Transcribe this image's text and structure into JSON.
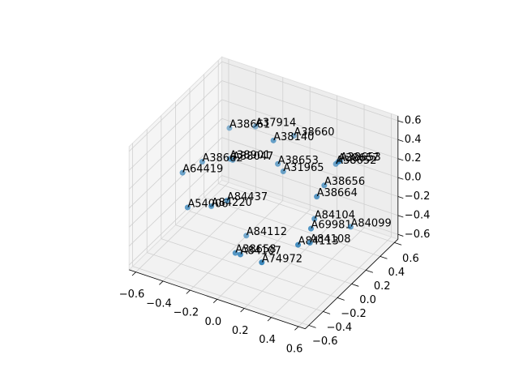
{
  "chart_data": {
    "type": "scatter3d",
    "color": "#1f77b4",
    "labels": [
      "A38661",
      "A37914",
      "A38660",
      "A38140",
      "A38901",
      "A38047",
      "A38662",
      "A64419",
      "A38653",
      "A31965",
      "A38653",
      "A38657",
      "A38652",
      "A38656",
      "A38664",
      "A54006",
      "A84220",
      "A84437",
      "A84104",
      "A69981",
      "A84099",
      "A84112",
      "A84113",
      "A84108",
      "A38658",
      "A84107",
      "A74972"
    ],
    "x": [
      -0.41,
      -0.27,
      -0.04,
      0.02,
      -0.25,
      -0.28,
      -0.4,
      -0.44,
      0.0,
      0.04,
      0.25,
      0.34,
      0.27,
      0.29,
      0.34,
      -0.35,
      -0.28,
      -0.27,
      0.27,
      0.35,
      0.38,
      -0.18,
      0.36,
      0.29,
      -0.05,
      0.04,
      0.25
    ],
    "y": [
      0.3,
      0.4,
      0.5,
      0.1,
      0.0,
      0.1,
      -0.1,
      -0.3,
      0.2,
      0.2,
      0.6,
      0.4,
      0.5,
      0.3,
      0.1,
      -0.4,
      -0.2,
      0.0,
      0.2,
      0.0,
      0.5,
      0.1,
      -0.2,
      0.1,
      -0.3,
      -0.4,
      -0.5
    ],
    "z": [
      0.27,
      0.28,
      0.22,
      0.49,
      0.24,
      0.14,
      0.21,
      0.22,
      0.16,
      0.1,
      0.02,
      0.2,
      0.07,
      0.0,
      0.05,
      -0.03,
      -0.13,
      -0.21,
      -0.29,
      -0.21,
      -0.54,
      -0.61,
      -0.23,
      -0.46,
      -0.44,
      -0.34,
      -0.25
    ],
    "xlim": [
      -0.65,
      0.65
    ],
    "ylim": [
      -0.65,
      0.65
    ],
    "zlim": [
      -0.65,
      0.65
    ],
    "xticks": [
      {
        "value": -0.6,
        "label": "−0.6"
      },
      {
        "value": -0.4,
        "label": "−0.4"
      },
      {
        "value": -0.2,
        "label": "−0.2"
      },
      {
        "value": 0,
        "label": "0.0"
      },
      0.2,
      0.4,
      0.6
    ],
    "yticks": [
      {
        "value": -0.6,
        "label": "−0.6"
      },
      {
        "value": -0.4,
        "label": "−0.4"
      },
      {
        "value": -0.2,
        "label": "−0.2"
      },
      {
        "value": 0,
        "label": "0.0"
      },
      0.2,
      0.4,
      0.6
    ],
    "zticks": [
      {
        "value": -0.6,
        "label": "−0.6"
      },
      {
        "value": -0.4,
        "label": "−0.4"
      },
      {
        "value": -0.2,
        "label": "−0.2"
      },
      {
        "value": 0,
        "label": "0.0"
      },
      0.2,
      0.4,
      0.6
    ],
    "grid": true
  }
}
